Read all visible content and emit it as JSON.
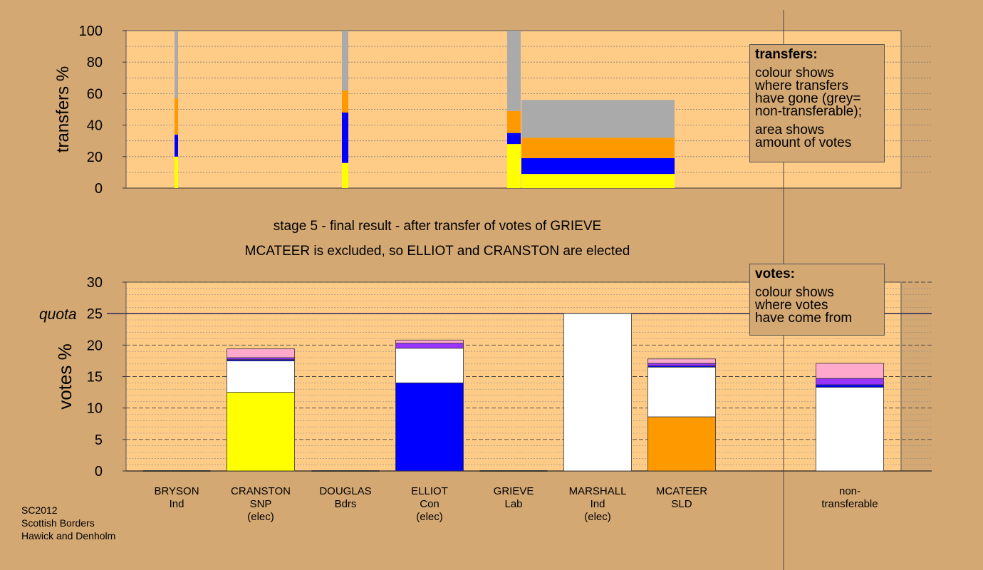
{
  "chart_data": [
    {
      "type": "bar",
      "stacked": true,
      "name_role": "transfers",
      "ylabel": "transfers %",
      "ylim": [
        0,
        100
      ],
      "yticks": [
        0,
        20,
        40,
        60,
        80,
        100
      ],
      "grid": true,
      "bars": [
        {
          "category": "BRYSON",
          "segments": [
            {
              "color": "#ffff00",
              "value": 20
            },
            {
              "color": "#0000ff",
              "value": 14
            },
            {
              "color": "#ff9900",
              "value": 23
            },
            {
              "color": "#aaaaaa",
              "value": 43
            }
          ]
        },
        {
          "category": "DOUGLAS",
          "segments": [
            {
              "color": "#ffff00",
              "value": 16
            },
            {
              "color": "#0000ff",
              "value": 32
            },
            {
              "color": "#ff9900",
              "value": 14
            },
            {
              "color": "#aaaaaa",
              "value": 38
            }
          ]
        },
        {
          "category": "GRIEVE",
          "segments": [
            {
              "color": "#ffff00",
              "value": 28
            },
            {
              "color": "#0000ff",
              "value": 7
            },
            {
              "color": "#ff9900",
              "value": 14
            },
            {
              "color": "#aaaaaa",
              "value": 51
            }
          ]
        }
      ],
      "area_block": {
        "segments": [
          {
            "color": "#ffff00",
            "value": 9
          },
          {
            "color": "#0000ff",
            "value": 10
          },
          {
            "color": "#ff9900",
            "value": 13
          },
          {
            "color": "#aaaaaa",
            "value": 24
          }
        ]
      }
    },
    {
      "type": "bar",
      "stacked": true,
      "name_role": "votes",
      "ylabel": "votes %",
      "ylim": [
        0,
        30
      ],
      "yticks": [
        0,
        5,
        10,
        15,
        20,
        25,
        30
      ],
      "quota": 25,
      "quota_label": "quota",
      "grid": true,
      "bars": [
        {
          "category": "BRYSON",
          "label": [
            "BRYSON",
            "Ind"
          ],
          "segments": []
        },
        {
          "category": "CRANSTON",
          "label": [
            "CRANSTON",
            "SNP",
            "(elec)"
          ],
          "segments": [
            {
              "color": "#ffff00",
              "value": 12.5
            },
            {
              "color": "#ffffff",
              "value": 5
            },
            {
              "color": "#0000ff",
              "value": 0.2
            },
            {
              "color": "#9933ff",
              "value": 0.3
            },
            {
              "color": "#ffaacc",
              "value": 1.4
            }
          ]
        },
        {
          "category": "DOUGLAS",
          "label": [
            "DOUGLAS",
            "Bdrs"
          ],
          "segments": []
        },
        {
          "category": "ELLIOT",
          "label": [
            "ELLIOT",
            "Con",
            "(elec)"
          ],
          "segments": [
            {
              "color": "#0000ff",
              "value": 14
            },
            {
              "color": "#ffffff",
              "value": 5.5
            },
            {
              "color": "#9933ff",
              "value": 0.8
            },
            {
              "color": "#ffaacc",
              "value": 0.5
            }
          ]
        },
        {
          "category": "GRIEVE",
          "label": [
            "GRIEVE",
            "Lab"
          ],
          "segments": []
        },
        {
          "category": "MARSHALL",
          "label": [
            "MARSHALL",
            "Ind",
            "(elec)"
          ],
          "segments": [
            {
              "color": "#ffffff",
              "value": 25
            }
          ]
        },
        {
          "category": "MCATEER",
          "label": [
            "MCATEER",
            "SLD"
          ],
          "segments": [
            {
              "color": "#ff9900",
              "value": 8.6
            },
            {
              "color": "#ffffff",
              "value": 7.9
            },
            {
              "color": "#0000ff",
              "value": 0.2
            },
            {
              "color": "#9933ff",
              "value": 0.4
            },
            {
              "color": "#ffaacc",
              "value": 0.7
            }
          ]
        },
        {
          "category": "non-transferable",
          "label": [
            "non-",
            "transferable"
          ],
          "segments": [
            {
              "color": "#ffffff",
              "value": 13.3
            },
            {
              "color": "#0000ff",
              "value": 0.4
            },
            {
              "color": "#9933ff",
              "value": 1
            },
            {
              "color": "#ffaacc",
              "value": 2.4
            }
          ]
        }
      ]
    }
  ],
  "captions": {
    "line1": "stage 5 - final result - after transfer of votes of GRIEVE",
    "line2": "MCATEER is excluded, so ELLIOT and CRANSTON are elected"
  },
  "legend_transfers": {
    "title": "transfers:",
    "lines1": [
      "colour shows",
      "where transfers",
      "have gone (grey=",
      "non-transferable);"
    ],
    "lines2": [
      "area shows",
      "amount of votes"
    ]
  },
  "legend_votes": {
    "title": "votes:",
    "lines": [
      "colour shows",
      "where votes",
      "have come from"
    ]
  },
  "source": [
    "SC2012",
    "Scottish Borders",
    "Hawick and Denholm"
  ]
}
